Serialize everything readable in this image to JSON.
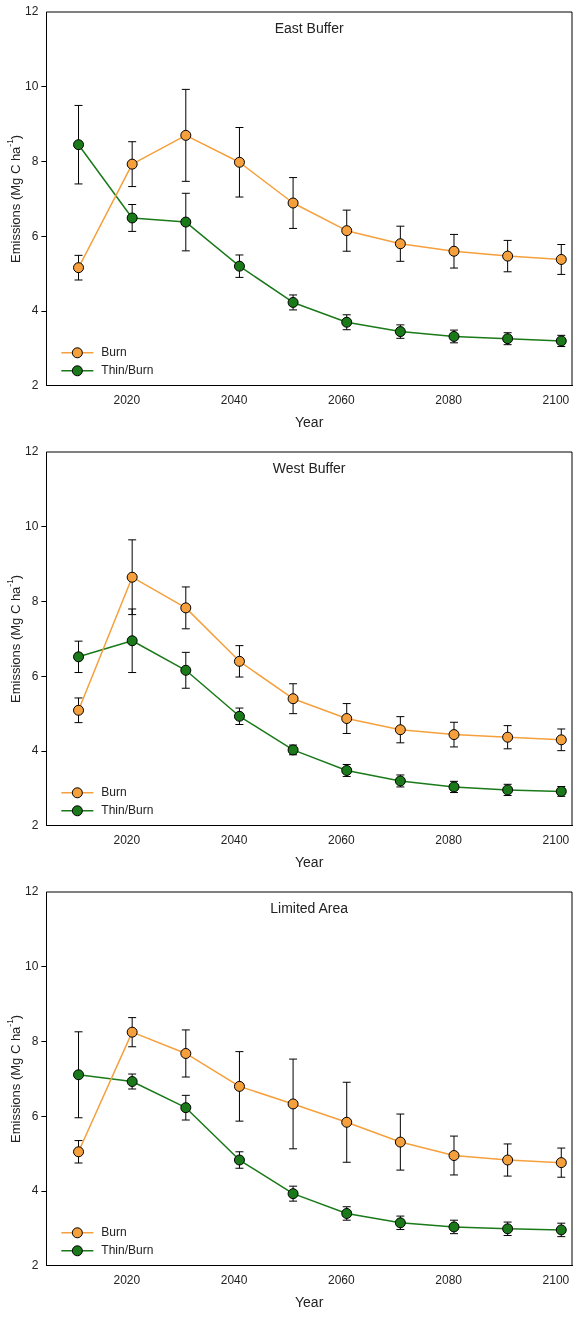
{
  "chart_data": [
    {
      "type": "line",
      "title": "East Buffer",
      "xlabel": "Year",
      "ylabel": "Emissions (Mg C ha$^{-1}$)",
      "x": [
        2011,
        2021,
        2031,
        2041,
        2051,
        2061,
        2071,
        2081,
        2091,
        2101
      ],
      "xlim": [
        2005,
        2103
      ],
      "xticks": [
        2020,
        2040,
        2060,
        2080,
        2100
      ],
      "ylim": [
        2,
        12
      ],
      "yticks": [
        2,
        4,
        6,
        8,
        10,
        12
      ],
      "legend": "bottom left",
      "marker": "circle",
      "line_style": "solid",
      "series": [
        {
          "name": "Burn",
          "color": "#f5a03c",
          "values": [
            5.16,
            7.93,
            8.7,
            7.98,
            6.89,
            6.15,
            5.8,
            5.6,
            5.47,
            5.38
          ],
          "errors": [
            0.33,
            0.6,
            1.23,
            0.93,
            0.68,
            0.55,
            0.47,
            0.45,
            0.42,
            0.4
          ]
        },
        {
          "name": "Thin/Burn",
          "color": "#1a7a1a",
          "values": [
            8.45,
            6.49,
            6.38,
            5.2,
            4.23,
            3.7,
            3.45,
            3.32,
            3.26,
            3.2
          ],
          "errors": [
            1.05,
            0.36,
            0.77,
            0.3,
            0.2,
            0.2,
            0.18,
            0.17,
            0.16,
            0.15
          ]
        }
      ]
    },
    {
      "type": "line",
      "title": "West Buffer",
      "xlabel": "Year",
      "ylabel": "Emissions (Mg C ha$^{-1}$)",
      "x": [
        2011,
        2021,
        2031,
        2041,
        2051,
        2061,
        2071,
        2081,
        2091,
        2101
      ],
      "xlim": [
        2005,
        2103
      ],
      "xticks": [
        2020,
        2040,
        2060,
        2080,
        2100
      ],
      "ylim": [
        2,
        12
      ],
      "yticks": [
        2,
        4,
        6,
        8,
        10,
        12
      ],
      "legend": "bottom left",
      "marker": "circle",
      "line_style": "solid",
      "series": [
        {
          "name": "Burn",
          "color": "#f5a03c",
          "values": [
            5.09,
            8.65,
            7.83,
            6.4,
            5.4,
            4.87,
            4.57,
            4.44,
            4.37,
            4.3
          ],
          "errors": [
            0.33,
            1.0,
            0.56,
            0.42,
            0.4,
            0.4,
            0.35,
            0.33,
            0.31,
            0.29
          ]
        },
        {
          "name": "Thin/Burn",
          "color": "#1a7a1a",
          "values": [
            6.52,
            6.95,
            6.16,
            4.93,
            4.03,
            3.48,
            3.2,
            3.04,
            2.96,
            2.92
          ],
          "errors": [
            0.42,
            0.85,
            0.48,
            0.22,
            0.13,
            0.16,
            0.16,
            0.15,
            0.15,
            0.13
          ]
        }
      ]
    },
    {
      "type": "line",
      "title": "Limited Area",
      "xlabel": "Year",
      "ylabel": "Emissions (Mg C ha$^{-1}$)",
      "x": [
        2011,
        2021,
        2031,
        2041,
        2051,
        2061,
        2071,
        2081,
        2091,
        2101
      ],
      "xlim": [
        2005,
        2103
      ],
      "xticks": [
        2020,
        2040,
        2060,
        2080,
        2100
      ],
      "ylim": [
        2,
        12
      ],
      "yticks": [
        2,
        4,
        6,
        8,
        10,
        12
      ],
      "legend": "bottom left",
      "marker": "circle",
      "line_style": "solid",
      "series": [
        {
          "name": "Burn",
          "color": "#f5a03c",
          "values": [
            5.05,
            8.25,
            7.68,
            6.8,
            6.33,
            5.84,
            5.31,
            4.95,
            4.83,
            4.76
          ],
          "errors": [
            0.3,
            0.39,
            0.63,
            0.93,
            1.2,
            1.07,
            0.75,
            0.52,
            0.43,
            0.39
          ]
        },
        {
          "name": "Thin/Burn",
          "color": "#1a7a1a",
          "values": [
            7.11,
            6.93,
            6.23,
            4.83,
            3.93,
            3.4,
            3.15,
            3.04,
            2.99,
            2.96
          ],
          "errors": [
            1.15,
            0.2,
            0.33,
            0.22,
            0.2,
            0.18,
            0.18,
            0.18,
            0.18,
            0.18
          ]
        }
      ]
    }
  ]
}
